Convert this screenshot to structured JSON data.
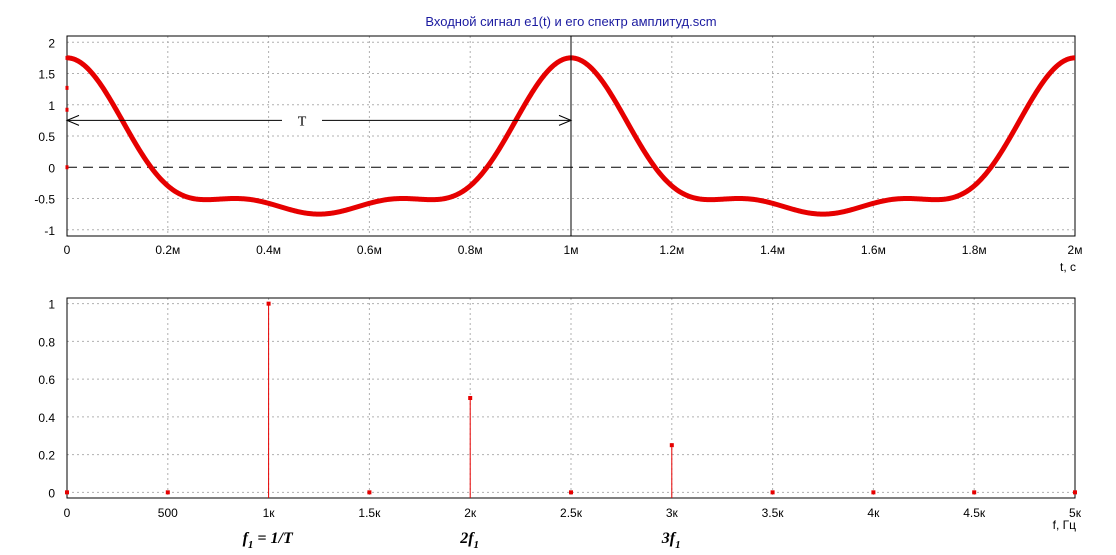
{
  "title": "Входной сигнал e1(t) и его спектр амплитуд.scm",
  "colors": {
    "signal": "#e60000",
    "grid": "#b0b0b0",
    "frame": "#000000"
  },
  "chart_data": [
    {
      "type": "line",
      "xlabel": "t, c",
      "xlim": [
        0,
        0.002
      ],
      "ylim": [
        -1.1,
        2.1
      ],
      "x_ticks": [
        0,
        0.0002,
        0.0004,
        0.0006,
        0.0008,
        0.001,
        0.0012,
        0.0014,
        0.0016,
        0.0018,
        0.002
      ],
      "x_tick_labels": [
        "0",
        "0.2м",
        "0.4м",
        "0.6м",
        "0.8м",
        "1м",
        "1.2м",
        "1.4м",
        "1.6м",
        "1.8м",
        "2м"
      ],
      "y_ticks": [
        2,
        1.5,
        1,
        0.5,
        0,
        -0.5,
        -1
      ],
      "y_tick_labels": [
        "2",
        "1.5",
        "1",
        "0.5",
        "0",
        "-0.5",
        "-1"
      ],
      "grid": true,
      "series": [
        {
          "formula": "cos(2*pi*1000*t) + 0.5*cos(2*pi*2000*t) + 0.25*cos(2*pi*3000*t)",
          "components": [
            {
              "frequency": 1000,
              "amplitude": 1.0
            },
            {
              "frequency": 2000,
              "amplitude": 0.5
            },
            {
              "frequency": 3000,
              "amplitude": 0.25
            }
          ]
        }
      ],
      "annotations": {
        "period_label": "T",
        "period_from": 0,
        "period_to": 0.001,
        "period_level": 0.75
      }
    },
    {
      "type": "bar",
      "xlabel": "f, Гц",
      "xlim": [
        0,
        5000
      ],
      "ylim": [
        -0.03,
        1.03
      ],
      "x_ticks": [
        0,
        500,
        1000,
        1500,
        2000,
        2500,
        3000,
        3500,
        4000,
        4500,
        5000
      ],
      "x_tick_labels": [
        "0",
        "500",
        "1к",
        "1.5к",
        "2к",
        "2.5к",
        "3к",
        "3.5к",
        "4к",
        "4.5к",
        "5к"
      ],
      "y_ticks": [
        1,
        0.8,
        0.6,
        0.4,
        0.2,
        0
      ],
      "y_tick_labels": [
        "1",
        "0.8",
        "0.6",
        "0.4",
        "0.2",
        "0"
      ],
      "grid": true,
      "x": [
        0,
        500,
        1000,
        1500,
        2000,
        2500,
        3000,
        3500,
        4000,
        4500,
        5000
      ],
      "values": [
        0,
        0,
        1.0,
        0,
        0.5,
        0,
        0.25,
        0,
        0,
        0,
        0
      ],
      "annotations": [
        {
          "main": "f",
          "sub": "1",
          "rest": " = 1/T",
          "x": 1000
        },
        {
          "main": "2f",
          "sub": "1",
          "rest": "",
          "x": 2000
        },
        {
          "main": "3f",
          "sub": "1",
          "rest": "",
          "x": 3000
        }
      ]
    }
  ]
}
